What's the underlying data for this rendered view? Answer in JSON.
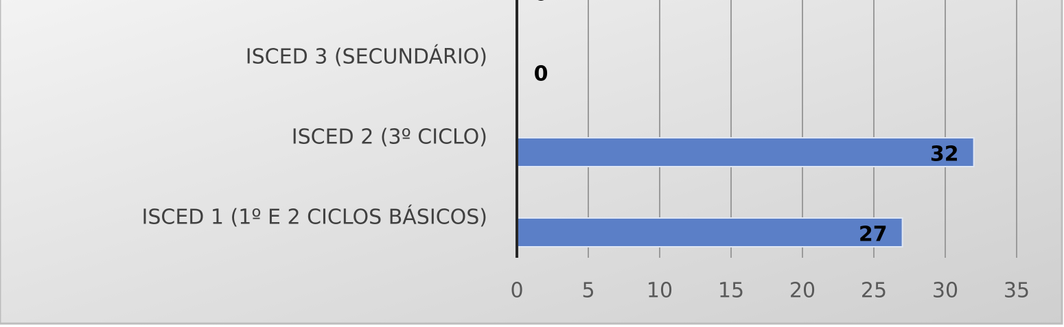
{
  "chart_data": {
    "type": "barh",
    "categories": [
      null,
      "ISCED 3 (SECUNDÁRIO)",
      "ISCED 2 (3º CICLO)",
      "ISCED 1 (1º E 2 CICLOS BÁSICOS)"
    ],
    "values": [
      0,
      0,
      32,
      27
    ],
    "color": "#5b7fc7",
    "xlim": [
      0,
      35
    ],
    "xticks": [
      0,
      5,
      10,
      15,
      20,
      25,
      30,
      35
    ],
    "grid": true
  }
}
